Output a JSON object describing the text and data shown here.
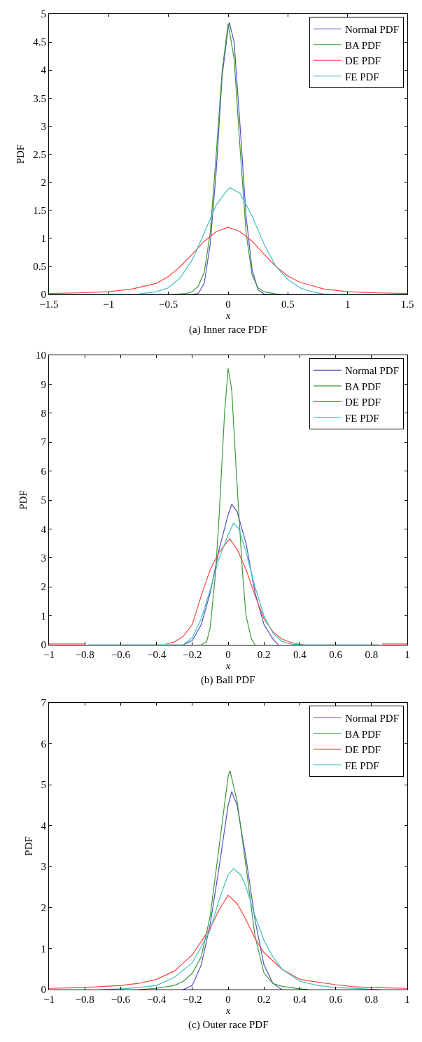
{
  "chart_data": [
    {
      "type": "line",
      "xlabel": "x",
      "ylabel": "PDF",
      "annotations": [
        "(a) Inner race PDF"
      ],
      "xlim": [
        -1.5,
        1.5
      ],
      "xticks": [
        -1.5,
        -1,
        -0.5,
        0,
        0.5,
        1,
        1.5
      ],
      "ylim": [
        0,
        5
      ],
      "yticks": [
        0,
        0.5,
        1,
        1.5,
        2,
        2.5,
        3,
        3.5,
        4,
        4.5,
        5
      ],
      "legend": "top right",
      "series": [
        {
          "name": "Normal PDF",
          "color": "#5050c0",
          "x": [
            -1.5,
            -0.3,
            -0.25,
            -0.2,
            -0.15,
            -0.1,
            -0.05,
            0,
            0.01,
            0.05,
            0.1,
            0.15,
            0.2,
            0.25,
            0.3,
            0.35,
            1.5
          ],
          "values": [
            0,
            0,
            0.02,
            0.2,
            0.9,
            2.2,
            3.9,
            4.75,
            4.85,
            4.5,
            3.0,
            1.4,
            0.45,
            0.08,
            0.01,
            0,
            0
          ]
        },
        {
          "name": "BA PDF",
          "color": "#3a9a3a",
          "x": [
            -0.45,
            -0.35,
            -0.3,
            -0.25,
            -0.2,
            -0.15,
            -0.1,
            -0.05,
            0,
            0.05,
            0.1,
            0.15,
            0.2,
            0.25,
            0.3,
            0.4,
            0.45
          ],
          "values": [
            0,
            0.02,
            0.05,
            0.15,
            0.4,
            1.1,
            2.5,
            4.0,
            4.83,
            4.2,
            2.6,
            1.1,
            0.35,
            0.12,
            0.05,
            0.01,
            0
          ]
        },
        {
          "name": "DE PDF",
          "color": "#ff4040",
          "x": [
            -1.5,
            -1.25,
            -1,
            -0.8,
            -0.6,
            -0.5,
            -0.4,
            -0.3,
            -0.2,
            -0.1,
            0,
            0.1,
            0.2,
            0.3,
            0.4,
            0.5,
            0.6,
            0.8,
            1,
            1.25,
            1.5
          ],
          "values": [
            0.02,
            0.03,
            0.05,
            0.1,
            0.2,
            0.32,
            0.5,
            0.72,
            0.95,
            1.12,
            1.2,
            1.12,
            0.95,
            0.72,
            0.5,
            0.33,
            0.22,
            0.1,
            0.05,
            0.03,
            0.02
          ]
        },
        {
          "name": "FE PDF",
          "color": "#40c0c0",
          "x": [
            -0.75,
            -0.6,
            -0.5,
            -0.4,
            -0.3,
            -0.2,
            -0.1,
            0,
            0.02,
            0.1,
            0.2,
            0.3,
            0.4,
            0.5,
            0.6,
            0.7,
            0.8,
            0.85
          ],
          "values": [
            0.01,
            0.05,
            0.12,
            0.3,
            0.62,
            1.1,
            1.6,
            1.88,
            1.9,
            1.8,
            1.4,
            0.9,
            0.5,
            0.27,
            0.12,
            0.05,
            0.01,
            0
          ]
        }
      ]
    },
    {
      "type": "line",
      "xlabel": "x",
      "ylabel": "PDF",
      "annotations": [
        "(b) Ball PDF"
      ],
      "xlim": [
        -1,
        1
      ],
      "xticks": [
        -1,
        -0.8,
        -0.6,
        -0.4,
        -0.2,
        0,
        0.2,
        0.4,
        0.6,
        0.8,
        1
      ],
      "ylim": [
        0,
        10
      ],
      "yticks": [
        0,
        1,
        2,
        3,
        4,
        5,
        6,
        7,
        8,
        9,
        10
      ],
      "legend": "top right",
      "series": [
        {
          "name": "Normal PDF",
          "color": "#5050c0",
          "x": [
            -0.25,
            -0.2,
            -0.15,
            -0.1,
            -0.05,
            0,
            0.02,
            0.05,
            0.1,
            0.15,
            0.2,
            0.25,
            0.28
          ],
          "values": [
            0,
            0.15,
            0.7,
            1.8,
            3.3,
            4.5,
            4.85,
            4.6,
            3.5,
            1.8,
            0.7,
            0.2,
            0
          ]
        },
        {
          "name": "BA PDF",
          "color": "#3a9a3a",
          "x": [
            -0.15,
            -0.12,
            -0.1,
            -0.07,
            -0.05,
            -0.02,
            0,
            0.02,
            0.05,
            0.08,
            0.1,
            0.13,
            0.15
          ],
          "values": [
            0,
            0.1,
            0.6,
            2.5,
            4.5,
            8,
            9.55,
            8.8,
            5.5,
            2.5,
            1.0,
            0.2,
            0
          ]
        },
        {
          "name": "DE PDF",
          "color": "#ff4040",
          "x": [
            -1,
            -0.8,
            -0.79,
            -0.35,
            -0.3,
            -0.25,
            -0.2,
            -0.15,
            -0.1,
            -0.05,
            0,
            0.01,
            0.05,
            0.1,
            0.15,
            0.2,
            0.25,
            0.3,
            0.35,
            0.4,
            0.42,
            0.85,
            0.86,
            1
          ],
          "values": [
            0.03,
            0.03,
            null,
            0.02,
            0.1,
            0.3,
            0.7,
            1.7,
            2.6,
            3.2,
            3.6,
            3.65,
            3.3,
            2.6,
            1.7,
            0.9,
            0.45,
            0.2,
            0.08,
            0.02,
            0,
            null,
            0.03,
            0.03
          ]
        },
        {
          "name": "FE PDF",
          "color": "#40c0c0",
          "x": [
            -0.78,
            -0.25,
            -0.2,
            -0.15,
            -0.1,
            -0.05,
            0,
            0.03,
            0.06,
            0.1,
            0.15,
            0.2,
            0.25,
            0.3,
            0.35,
            0.4,
            0.84
          ],
          "values": [
            0,
            0,
            0.25,
            0.9,
            1.9,
            3.0,
            3.8,
            4.2,
            4.0,
            3.2,
            2.0,
            1.0,
            0.4,
            0.12,
            0.03,
            0,
            0
          ]
        }
      ]
    },
    {
      "type": "line",
      "xlabel": "x",
      "ylabel": "PDF",
      "annotations": [
        "(c) Outer race PDF"
      ],
      "xlim": [
        -1,
        1
      ],
      "xticks": [
        -1,
        -0.8,
        -0.6,
        -0.4,
        -0.2,
        0,
        0.2,
        0.4,
        0.6,
        0.8,
        1
      ],
      "ylim": [
        0,
        7
      ],
      "yticks": [
        0,
        1,
        2,
        3,
        4,
        5,
        6,
        7
      ],
      "legend": "top right",
      "series": [
        {
          "name": "Normal PDF",
          "color": "#5050c0",
          "x": [
            -0.25,
            -0.2,
            -0.15,
            -0.1,
            -0.05,
            0,
            0.02,
            0.05,
            0.1,
            0.15,
            0.2,
            0.25,
            0.3
          ],
          "values": [
            0,
            0.1,
            0.6,
            1.6,
            3.0,
            4.5,
            4.83,
            4.5,
            3.2,
            1.7,
            0.6,
            0.15,
            0
          ]
        },
        {
          "name": "BA PDF",
          "color": "#3a9a3a",
          "x": [
            -0.5,
            -0.4,
            -0.3,
            -0.25,
            -0.2,
            -0.15,
            -0.1,
            -0.05,
            0,
            0.01,
            0.05,
            0.1,
            0.15,
            0.2,
            0.25,
            0.3,
            0.4,
            0.45
          ],
          "values": [
            0,
            0.03,
            0.1,
            0.2,
            0.4,
            0.8,
            1.8,
            3.5,
            5.2,
            5.35,
            4.6,
            3.0,
            1.3,
            0.4,
            0.15,
            0.08,
            0.02,
            0
          ]
        },
        {
          "name": "DE PDF",
          "color": "#ff4040",
          "x": [
            -1,
            -0.8,
            -0.6,
            -0.5,
            -0.4,
            -0.3,
            -0.2,
            -0.1,
            -0.05,
            0,
            0.05,
            0.1,
            0.15,
            0.2,
            0.3,
            0.4,
            0.5,
            0.6,
            0.7,
            0.8,
            1
          ],
          "values": [
            0.03,
            0.05,
            0.1,
            0.15,
            0.25,
            0.45,
            0.85,
            1.5,
            1.95,
            2.3,
            2.1,
            1.7,
            1.25,
            0.9,
            0.5,
            0.25,
            0.18,
            0.12,
            0.07,
            0.05,
            0.03
          ]
        },
        {
          "name": "FE PDF",
          "color": "#40c0c0",
          "x": [
            -0.7,
            -0.6,
            -0.5,
            -0.4,
            -0.3,
            -0.2,
            -0.1,
            -0.05,
            0,
            0.03,
            0.07,
            0.1,
            0.15,
            0.2,
            0.25,
            0.3,
            0.4,
            0.5,
            0.6,
            0.75,
            0.85
          ],
          "values": [
            0,
            0.02,
            0.05,
            0.1,
            0.3,
            0.65,
            1.45,
            2.2,
            2.8,
            2.95,
            2.8,
            2.5,
            1.8,
            1.2,
            0.8,
            0.5,
            0.2,
            0.1,
            0.05,
            0.02,
            0
          ]
        }
      ]
    }
  ]
}
